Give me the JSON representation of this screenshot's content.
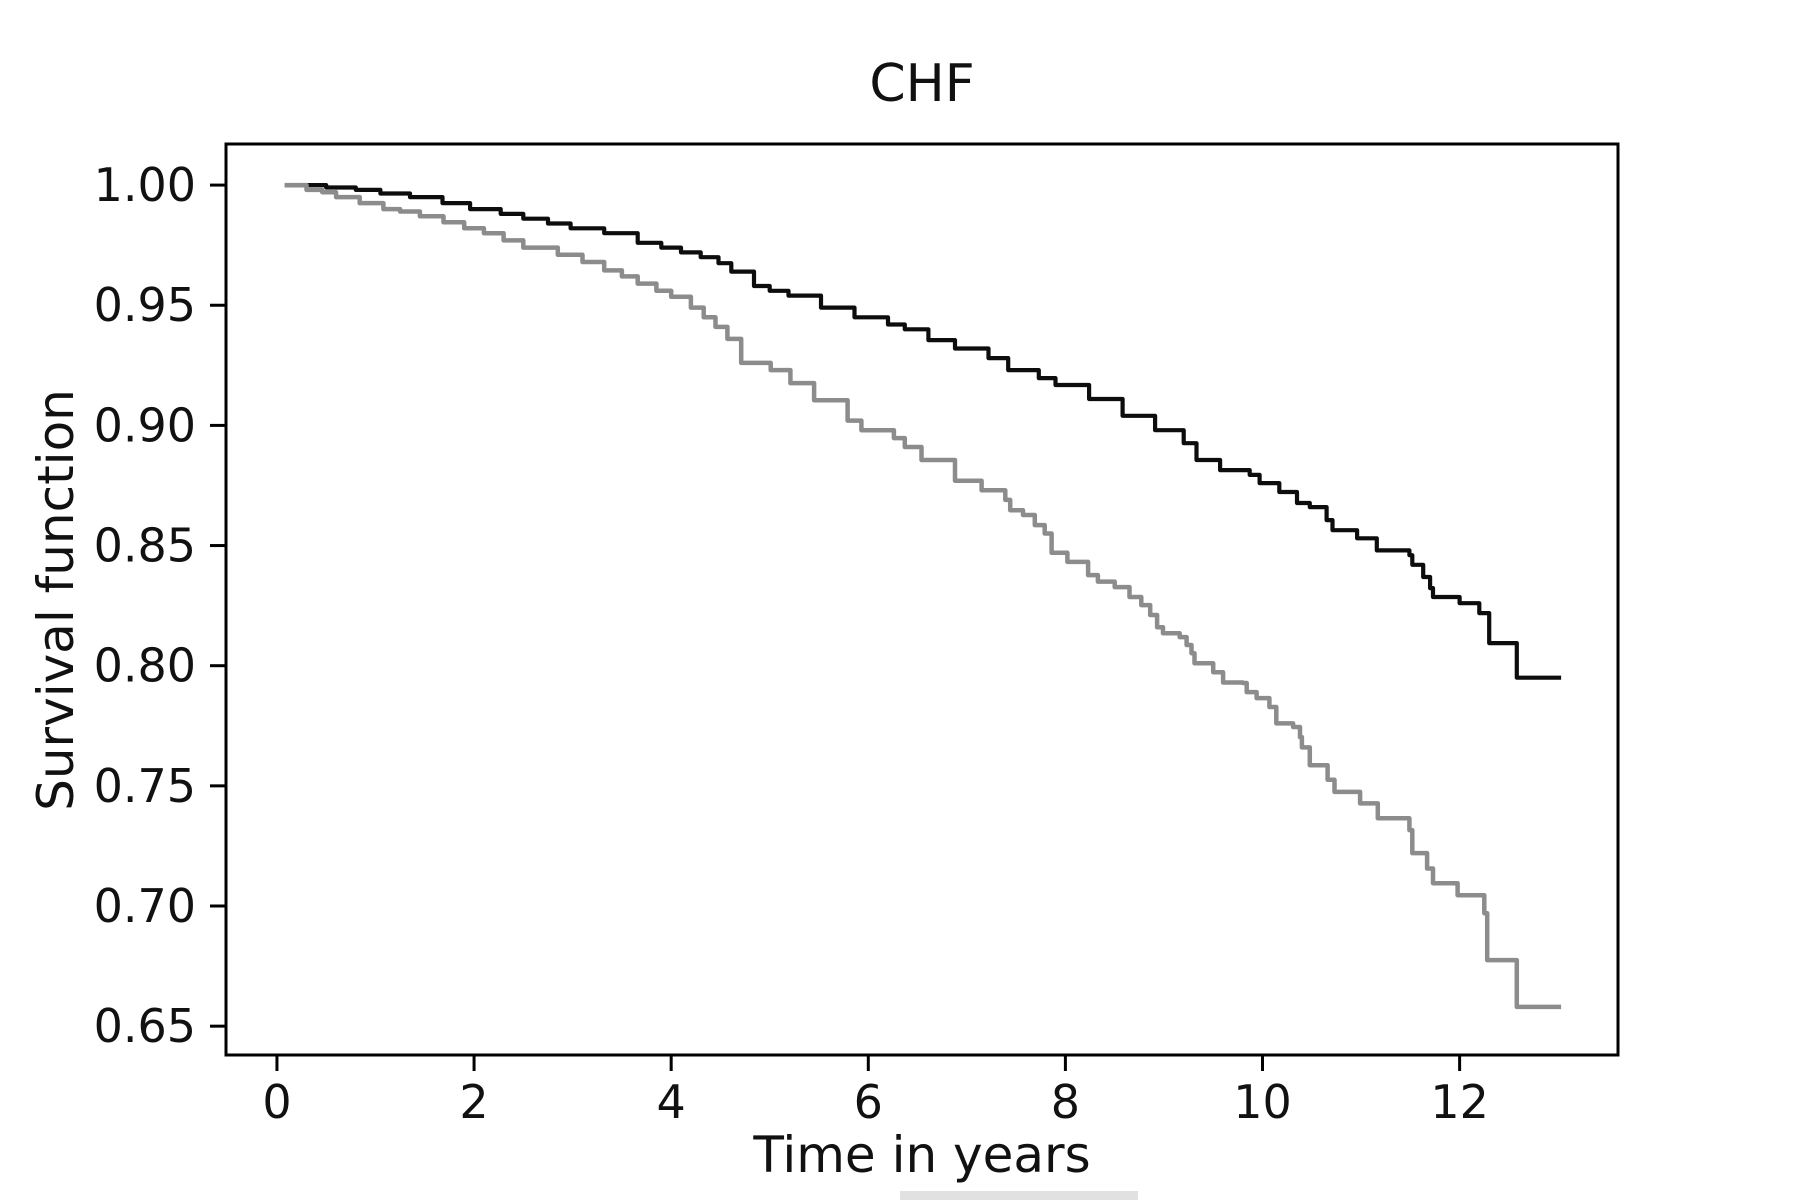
{
  "figure": {
    "title": "CHF",
    "xlabel": "Time in years",
    "ylabel": "Survival function"
  },
  "chart_data": {
    "type": "line",
    "subtype": "kaplan-meier-step-survival",
    "title": "CHF",
    "xlabel": "Time in years",
    "ylabel": "Survival function",
    "grid": false,
    "legend": "none",
    "xlim": [
      -0.517,
      13.607
    ],
    "ylim": [
      0.638,
      1.0171
    ],
    "x_ticks": [
      0,
      2,
      4,
      6,
      8,
      10,
      12
    ],
    "x_tick_labels": [
      "0",
      "2",
      "4",
      "6",
      "8",
      "10",
      "12"
    ],
    "y_ticks": [
      0.65,
      0.7,
      0.75,
      0.8,
      0.85,
      0.9,
      0.95,
      1.0
    ],
    "y_tick_labels": [
      "0.65",
      "0.70",
      "0.75",
      "0.80",
      "0.85",
      "0.90",
      "0.95",
      "1.00"
    ],
    "frame_color": "#000000",
    "series": [
      {
        "name": "survival-curve-upper-black",
        "color": "#0d0d0d",
        "line_width": 4.2,
        "step": "post",
        "points": [
          [
            0.08,
            1.0
          ],
          [
            0.5,
            0.999
          ],
          [
            0.8,
            0.998
          ],
          [
            1.05,
            0.9965
          ],
          [
            1.35,
            0.995
          ],
          [
            1.68,
            0.9925
          ],
          [
            1.96,
            0.99
          ],
          [
            2.27,
            0.988
          ],
          [
            2.5,
            0.986
          ],
          [
            2.75,
            0.984
          ],
          [
            2.98,
            0.982
          ],
          [
            3.32,
            0.98
          ],
          [
            3.66,
            0.976
          ],
          [
            3.9,
            0.974
          ],
          [
            4.1,
            0.972
          ],
          [
            4.3,
            0.97
          ],
          [
            4.48,
            0.9675
          ],
          [
            4.61,
            0.964
          ],
          [
            4.84,
            0.958
          ],
          [
            5.0,
            0.956
          ],
          [
            5.19,
            0.954
          ],
          [
            5.52,
            0.949
          ],
          [
            5.86,
            0.945
          ],
          [
            6.2,
            0.942
          ],
          [
            6.37,
            0.94
          ],
          [
            6.61,
            0.9355
          ],
          [
            6.88,
            0.932
          ],
          [
            7.22,
            0.928
          ],
          [
            7.42,
            0.923
          ],
          [
            7.73,
            0.9197
          ],
          [
            7.9,
            0.9168
          ],
          [
            8.24,
            0.911
          ],
          [
            8.58,
            0.904
          ],
          [
            8.91,
            0.898
          ],
          [
            9.2,
            0.8926
          ],
          [
            9.33,
            0.8856
          ],
          [
            9.57,
            0.8814
          ],
          [
            9.87,
            0.8794
          ],
          [
            9.97,
            0.876
          ],
          [
            10.17,
            0.8723
          ],
          [
            10.35,
            0.8677
          ],
          [
            10.48,
            0.866
          ],
          [
            10.65,
            0.8606
          ],
          [
            10.71,
            0.8564
          ],
          [
            10.96,
            0.853
          ],
          [
            11.16,
            0.848
          ],
          [
            11.49,
            0.846
          ],
          [
            11.52,
            0.842
          ],
          [
            11.63,
            0.8369
          ],
          [
            11.7,
            0.8323
          ],
          [
            11.73,
            0.8286
          ],
          [
            12.0,
            0.826
          ],
          [
            12.2,
            0.8219
          ],
          [
            12.3,
            0.8094
          ],
          [
            12.58,
            0.795
          ],
          [
            13.03,
            0.795
          ]
        ]
      },
      {
        "name": "survival-curve-lower-gray",
        "color": "#8c8c8c",
        "line_width": 4.5,
        "step": "post",
        "points": [
          [
            0.08,
            1.0
          ],
          [
            0.3,
            0.998
          ],
          [
            0.46,
            0.997
          ],
          [
            0.6,
            0.995
          ],
          [
            0.84,
            0.9925
          ],
          [
            1.08,
            0.99
          ],
          [
            1.25,
            0.989
          ],
          [
            1.45,
            0.987
          ],
          [
            1.69,
            0.9845
          ],
          [
            1.9,
            0.982
          ],
          [
            2.1,
            0.98
          ],
          [
            2.3,
            0.977
          ],
          [
            2.5,
            0.974
          ],
          [
            2.85,
            0.971
          ],
          [
            3.1,
            0.968
          ],
          [
            3.32,
            0.9645
          ],
          [
            3.5,
            0.962
          ],
          [
            3.66,
            0.959
          ],
          [
            3.85,
            0.956
          ],
          [
            4.0,
            0.9535
          ],
          [
            4.2,
            0.949
          ],
          [
            4.33,
            0.945
          ],
          [
            4.45,
            0.941
          ],
          [
            4.57,
            0.936
          ],
          [
            4.71,
            0.926
          ],
          [
            5.01,
            0.923
          ],
          [
            5.21,
            0.9176
          ],
          [
            5.45,
            0.9105
          ],
          [
            5.79,
            0.902
          ],
          [
            5.93,
            0.898
          ],
          [
            6.26,
            0.8947
          ],
          [
            6.37,
            0.891
          ],
          [
            6.54,
            0.8856
          ],
          [
            6.88,
            0.877
          ],
          [
            7.15,
            0.873
          ],
          [
            7.39,
            0.869
          ],
          [
            7.44,
            0.8647
          ],
          [
            7.57,
            0.8627
          ],
          [
            7.69,
            0.8585
          ],
          [
            7.79,
            0.855
          ],
          [
            7.86,
            0.847
          ],
          [
            8.02,
            0.8432
          ],
          [
            8.23,
            0.8377
          ],
          [
            8.33,
            0.835
          ],
          [
            8.5,
            0.8327
          ],
          [
            8.65,
            0.8286
          ],
          [
            8.77,
            0.8252
          ],
          [
            8.86,
            0.8211
          ],
          [
            8.93,
            0.816
          ],
          [
            8.99,
            0.8135
          ],
          [
            9.16,
            0.8119
          ],
          [
            9.23,
            0.8086
          ],
          [
            9.28,
            0.8052
          ],
          [
            9.31,
            0.801
          ],
          [
            9.5,
            0.7973
          ],
          [
            9.6,
            0.793
          ],
          [
            9.8,
            0.7928
          ],
          [
            9.84,
            0.789
          ],
          [
            9.94,
            0.7865
          ],
          [
            10.07,
            0.7828
          ],
          [
            10.14,
            0.776
          ],
          [
            10.31,
            0.7745
          ],
          [
            10.38,
            0.7703
          ],
          [
            10.4,
            0.766
          ],
          [
            10.48,
            0.7586
          ],
          [
            10.66,
            0.7525
          ],
          [
            10.73,
            0.7475
          ],
          [
            10.99,
            0.7427
          ],
          [
            11.17,
            0.7365
          ],
          [
            11.49,
            0.7316
          ],
          [
            11.52,
            0.722
          ],
          [
            11.67,
            0.7156
          ],
          [
            11.73,
            0.7095
          ],
          [
            11.98,
            0.7045
          ],
          [
            12.25,
            0.697
          ],
          [
            12.28,
            0.6775
          ],
          [
            12.58,
            0.658
          ],
          [
            13.03,
            0.658
          ]
        ]
      }
    ]
  }
}
